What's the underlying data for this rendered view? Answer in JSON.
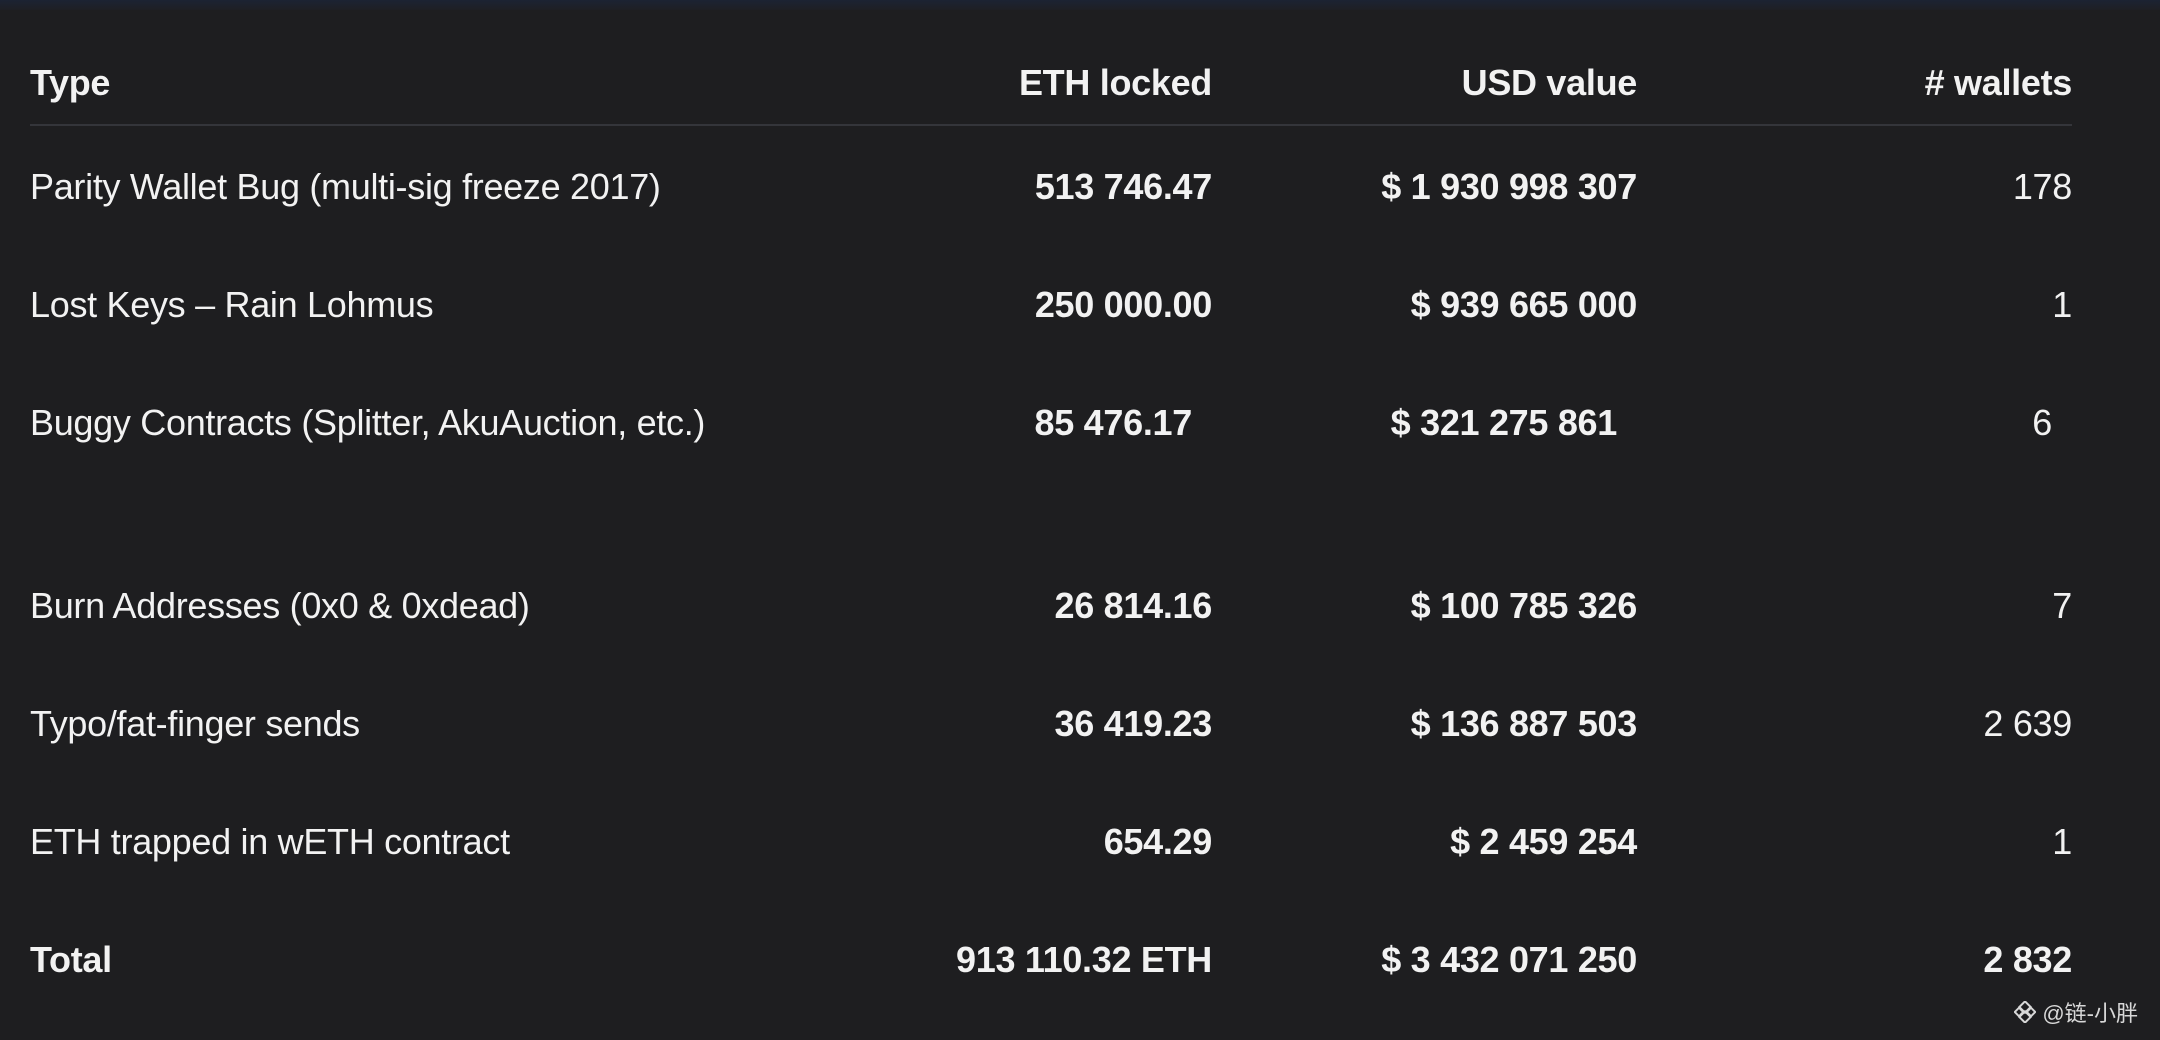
{
  "table": {
    "headers": {
      "type": "Type",
      "eth": "ETH locked",
      "usd": "USD value",
      "wallets": "# wallets"
    },
    "rows": [
      {
        "type": "Parity Wallet Bug (multi-sig freeze 2017)",
        "eth": "513 746.47",
        "usd": "$ 1 930 998 307",
        "wallets": "178"
      },
      {
        "type": "Lost Keys – Rain Lohmus",
        "eth": "250 000.00",
        "usd": "$ 939 665 000",
        "wallets": "1"
      },
      {
        "type": "Buggy Contracts (Splitter, AkuAuction, etc.)",
        "eth": "85 476.17",
        "usd": "$ 321 275 861",
        "wallets": "6"
      },
      {
        "type": "Burn Addresses (0x0 & 0xdead)",
        "eth": "26 814.16",
        "usd": "$ 100 785 326",
        "wallets": "7"
      },
      {
        "type": "Typo/fat-finger sends",
        "eth": "36 419.23",
        "usd": "$ 136 887 503",
        "wallets": "2 639"
      },
      {
        "type": "ETH trapped in wETH contract",
        "eth": "654.29",
        "usd": "$ 2 459 254",
        "wallets": "1"
      }
    ],
    "total": {
      "type": "Total",
      "eth": "913 110.32 ETH",
      "usd": "$ 3 432 071 250",
      "wallets": "2 832"
    }
  },
  "watermark": {
    "text": "@链-小胖",
    "icon": "binance-diamond-icon"
  },
  "colors": {
    "background": "#1e1e20",
    "text": "#f2f2f2",
    "divider": "#34353a"
  }
}
